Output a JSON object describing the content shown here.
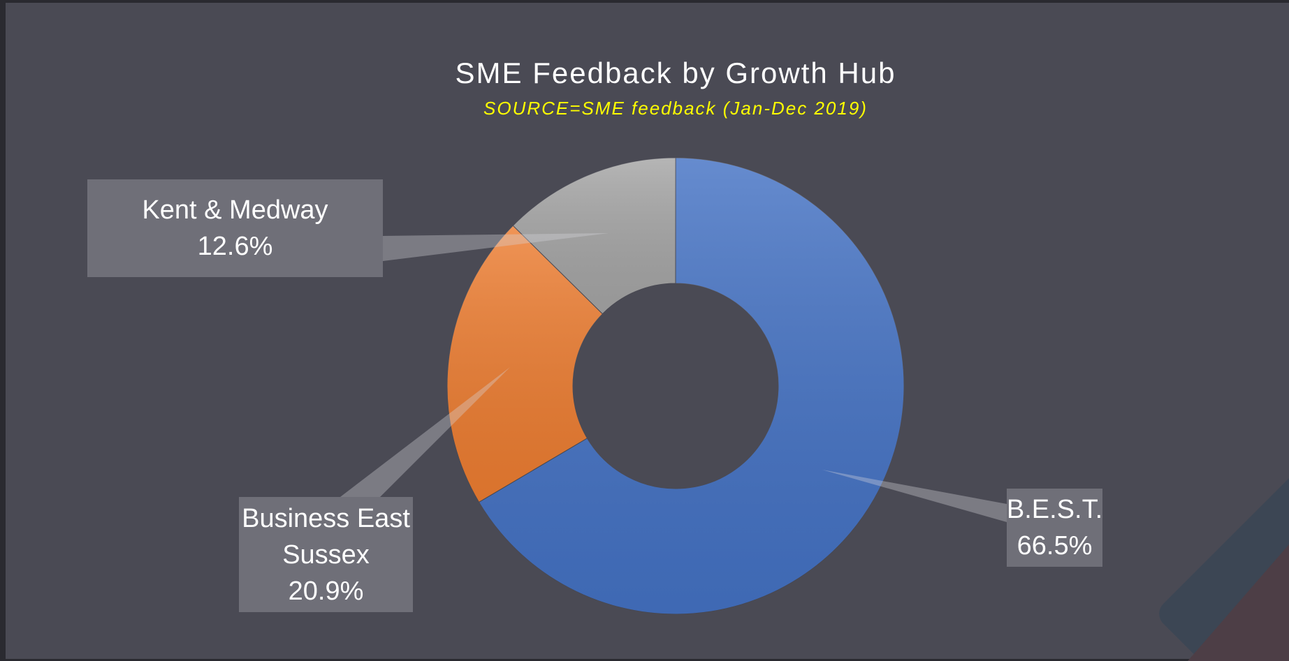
{
  "chart_data": {
    "type": "donut",
    "title": "SME Feedback by Growth Hub",
    "subtitle": "SOURCE=SME feedback (Jan-Dec 2019)",
    "categories": [
      "B.E.S.T.",
      "Business East Sussex",
      "Kent & Medway"
    ],
    "values": [
      66.5,
      20.9,
      12.6
    ],
    "value_labels": [
      "66.5%",
      "20.9%",
      "12.6%"
    ],
    "colors": [
      "#4472c4",
      "#ed7d31",
      "#a5a5a5"
    ]
  }
}
